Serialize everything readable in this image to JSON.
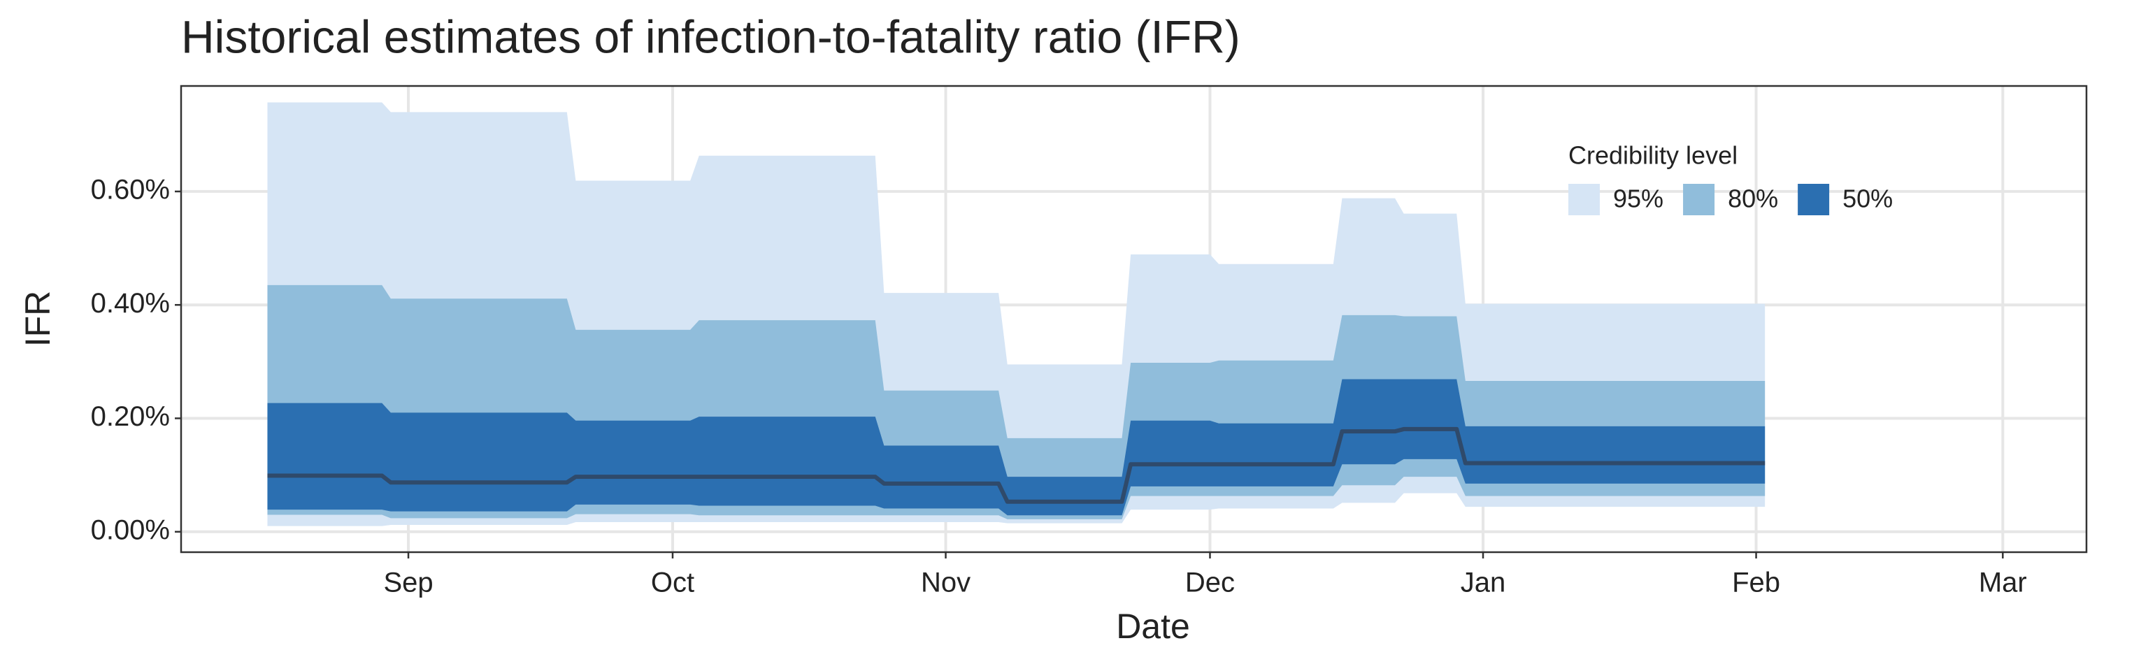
{
  "chart_data": {
    "type": "ribbon",
    "title": "Historical estimates of infection-to-fatality ratio (IFR)",
    "x_label": "Date",
    "y_label": "IFR",
    "legend_title": "Credibility level",
    "legend_position": "top-right",
    "grid": true,
    "xlim": [
      -25.8,
      190.5
    ],
    "xticks": [
      {
        "value": 0,
        "label": "Sep"
      },
      {
        "value": 30,
        "label": "Oct"
      },
      {
        "value": 61,
        "label": "Nov"
      },
      {
        "value": 91,
        "label": "Dec"
      },
      {
        "value": 122,
        "label": "Jan"
      },
      {
        "value": 153,
        "label": "Feb"
      },
      {
        "value": 181,
        "label": "Mar"
      }
    ],
    "ylim": [
      -0.036,
      0.786
    ],
    "yticks": [
      {
        "value": 0,
        "label": "0.00%"
      },
      {
        "value": 0.2,
        "label": "0.20%"
      },
      {
        "value": 0.4,
        "label": "0.40%"
      },
      {
        "value": 0.6,
        "label": "0.60%"
      }
    ],
    "x": [
      -16,
      -3,
      -2,
      18,
      19,
      32,
      33,
      53,
      54,
      67,
      68,
      81,
      82,
      91,
      92,
      105,
      106,
      112,
      113,
      119,
      120,
      154
    ],
    "series": [
      {
        "name": "95%",
        "color": "#d6e5f5",
        "upper": [
          0.757,
          0.757,
          0.74,
          0.74,
          0.619,
          0.619,
          0.663,
          0.663,
          0.421,
          0.421,
          0.295,
          0.295,
          0.489,
          0.489,
          0.472,
          0.472,
          0.588,
          0.588,
          0.561,
          0.561,
          0.402,
          0.402
        ],
        "lower": [
          0.01,
          0.01,
          0.012,
          0.012,
          0.017,
          0.017,
          0.017,
          0.017,
          0.017,
          0.017,
          0.015,
          0.015,
          0.039,
          0.039,
          0.041,
          0.041,
          0.051,
          0.051,
          0.068,
          0.068,
          0.044,
          0.044
        ]
      },
      {
        "name": "80%",
        "color": "#90bddb",
        "upper": [
          0.435,
          0.435,
          0.411,
          0.411,
          0.356,
          0.356,
          0.373,
          0.373,
          0.249,
          0.249,
          0.165,
          0.165,
          0.298,
          0.298,
          0.302,
          0.302,
          0.382,
          0.382,
          0.38,
          0.38,
          0.266,
          0.266
        ],
        "lower": [
          0.03,
          0.03,
          0.024,
          0.024,
          0.031,
          0.031,
          0.029,
          0.029,
          0.029,
          0.029,
          0.022,
          0.022,
          0.063,
          0.063,
          0.063,
          0.063,
          0.082,
          0.082,
          0.097,
          0.097,
          0.063,
          0.063
        ]
      },
      {
        "name": "50%",
        "color": "#2b6fb1",
        "upper": [
          0.227,
          0.227,
          0.21,
          0.21,
          0.196,
          0.196,
          0.203,
          0.203,
          0.152,
          0.152,
          0.097,
          0.097,
          0.196,
          0.196,
          0.191,
          0.191,
          0.269,
          0.269,
          0.269,
          0.269,
          0.186,
          0.186
        ],
        "lower": [
          0.039,
          0.039,
          0.036,
          0.036,
          0.048,
          0.048,
          0.046,
          0.046,
          0.041,
          0.041,
          0.029,
          0.029,
          0.08,
          0.08,
          0.08,
          0.08,
          0.119,
          0.119,
          0.128,
          0.128,
          0.085,
          0.085
        ]
      }
    ],
    "median": {
      "color": "#2f4a6b",
      "values": [
        0.099,
        0.099,
        0.087,
        0.087,
        0.097,
        0.097,
        0.097,
        0.097,
        0.085,
        0.085,
        0.053,
        0.053,
        0.119,
        0.119,
        0.119,
        0.119,
        0.177,
        0.177,
        0.181,
        0.181,
        0.121,
        0.121
      ]
    }
  }
}
